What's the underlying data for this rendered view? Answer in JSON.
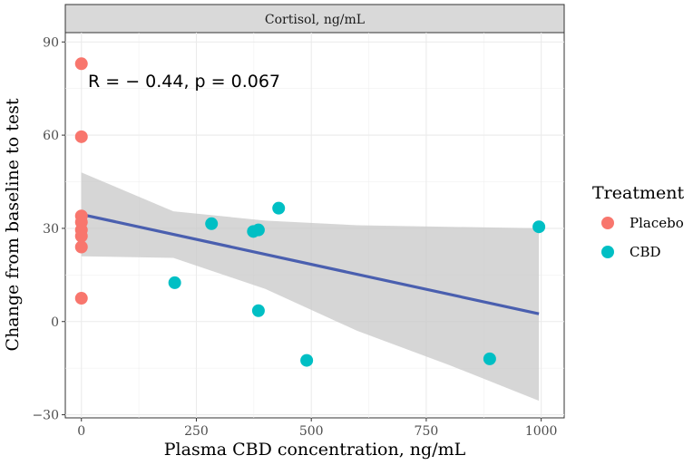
{
  "chart_data": {
    "type": "scatter",
    "facet_label": "Cortisol, ng/mL",
    "xlabel": "Plasma CBD concentration, ng/mL",
    "ylabel": "Change from baseline to test",
    "xlim": [
      -35,
      1050
    ],
    "ylim": [
      -31,
      93
    ],
    "x_ticks": [
      0,
      250,
      500,
      750,
      1000
    ],
    "x_tick_labels": [
      "0",
      "250",
      "500",
      "750",
      "1000"
    ],
    "y_ticks": [
      -30,
      0,
      30,
      60,
      90
    ],
    "y_tick_labels": [
      "−30",
      "0",
      "30",
      "60",
      "90"
    ],
    "grid": true,
    "annotation": "R = − 0.44, p = 0.067",
    "legend": {
      "title": "Treatment",
      "position": "right",
      "entries": [
        {
          "label": "Placebo",
          "color": "#F8766D"
        },
        {
          "label": "CBD",
          "color": "#00BFC4"
        }
      ]
    },
    "series": [
      {
        "name": "Placebo",
        "color": "#F8766D",
        "points": [
          {
            "x": 0,
            "y": 83
          },
          {
            "x": 0,
            "y": 59.5
          },
          {
            "x": 0,
            "y": 34
          },
          {
            "x": 0,
            "y": 32
          },
          {
            "x": 0,
            "y": 29.5
          },
          {
            "x": 0,
            "y": 27.5
          },
          {
            "x": 0,
            "y": 24
          },
          {
            "x": 0,
            "y": 7.5
          }
        ]
      },
      {
        "name": "CBD",
        "color": "#00BFC4",
        "points": [
          {
            "x": 203,
            "y": 12.5
          },
          {
            "x": 283,
            "y": 31.5
          },
          {
            "x": 374,
            "y": 29
          },
          {
            "x": 385,
            "y": 29.5
          },
          {
            "x": 385,
            "y": 3.5
          },
          {
            "x": 429,
            "y": 36.5
          },
          {
            "x": 490,
            "y": -12.5
          },
          {
            "x": 888,
            "y": -12
          },
          {
            "x": 995,
            "y": 30.5
          }
        ]
      }
    ],
    "fit": {
      "color": "#4A5FAF",
      "band_color": "#c8c8c8",
      "points": [
        {
          "x": 0,
          "lower": 21,
          "fit": 34.5,
          "upper": 48
        },
        {
          "x": 200,
          "lower": 20.5,
          "fit": 28,
          "upper": 35.5
        },
        {
          "x": 400,
          "lower": 10.5,
          "fit": 21.5,
          "upper": 32.5
        },
        {
          "x": 600,
          "lower": -3,
          "fit": 15,
          "upper": 31
        },
        {
          "x": 800,
          "lower": -14,
          "fit": 8.5,
          "upper": 30.5
        },
        {
          "x": 995,
          "lower": -25.5,
          "fit": 2.5,
          "upper": 30
        }
      ]
    }
  }
}
